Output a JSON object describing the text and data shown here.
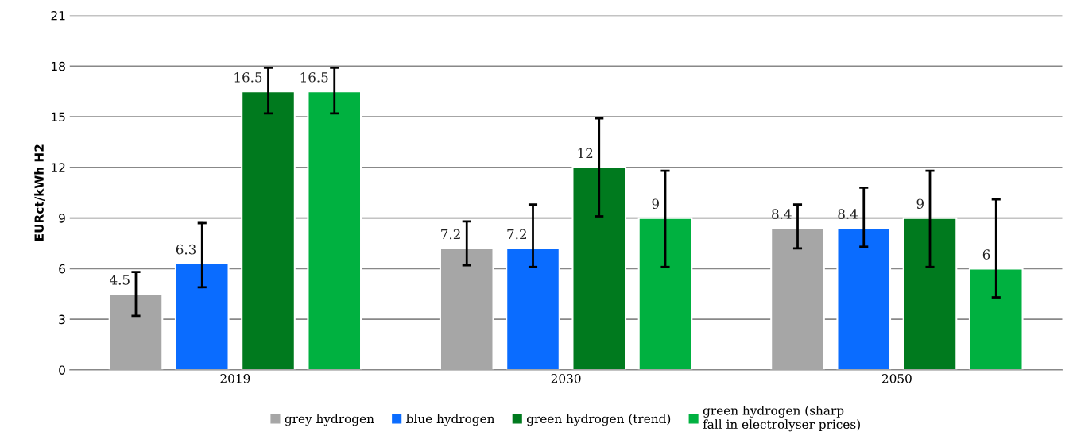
{
  "chart_data": {
    "type": "bar",
    "ylabel": "EURct/kWh H2",
    "categories": [
      "2019",
      "2030",
      "2050"
    ],
    "series": [
      {
        "name": "grey hydrogen",
        "color": "#a6a6a6",
        "values": [
          4.5,
          7.2,
          8.4
        ],
        "errors": [
          [
            3.2,
            5.8
          ],
          [
            6.2,
            8.8
          ],
          [
            7.2,
            9.8
          ]
        ]
      },
      {
        "name": "blue hydrogen",
        "color": "#0a6cff",
        "values": [
          6.3,
          7.2,
          8.4
        ],
        "errors": [
          [
            4.9,
            8.7
          ],
          [
            6.1,
            9.8
          ],
          [
            7.3,
            10.8
          ]
        ]
      },
      {
        "name": "green hydrogen (trend)",
        "color": "#007a1e",
        "values": [
          16.5,
          12,
          9
        ],
        "errors": [
          [
            15.2,
            17.9
          ],
          [
            9.1,
            14.9
          ],
          [
            6.1,
            11.8
          ]
        ]
      },
      {
        "name": "green hydrogen (sharp\nfall in electrolyser prices)",
        "color": "#00b140",
        "values": [
          16.5,
          9,
          6
        ],
        "errors": [
          [
            15.2,
            17.9
          ],
          [
            6.1,
            11.8
          ],
          [
            4.3,
            10.1
          ]
        ]
      }
    ],
    "ylim": [
      0,
      21
    ],
    "yticks": [
      0,
      3,
      6,
      9,
      12,
      15,
      18,
      21
    ],
    "grid": "y",
    "legend": "bottom",
    "data_labels": true
  }
}
